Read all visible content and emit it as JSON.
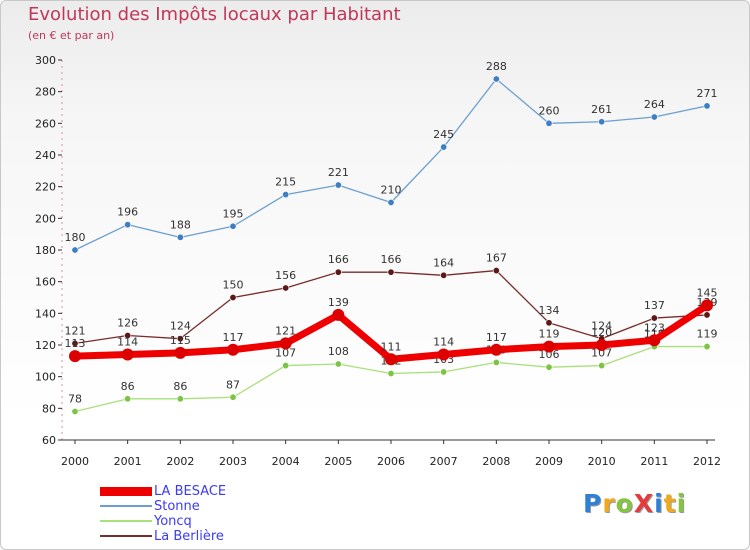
{
  "header": {
    "title": "Evolution des Impôts locaux par Habitant",
    "subtitle": "(en € et par an)"
  },
  "logo": {
    "text": "ProXiti",
    "letters": [
      {
        "ch": "P",
        "color": "#2e7fd6"
      },
      {
        "ch": "r",
        "color": "#f0a81c"
      },
      {
        "ch": "o",
        "color": "#86c541"
      },
      {
        "ch": "X",
        "color": "#e43c3c"
      },
      {
        "ch": "i",
        "color": "#2e7fd6"
      },
      {
        "ch": "t",
        "color": "#f0a81c"
      },
      {
        "ch": "i",
        "color": "#86c541"
      }
    ]
  },
  "chart_data": {
    "type": "line",
    "title": "Evolution des Impôts locaux par Habitant",
    "subtitle": "(en € et par an)",
    "xlabel": "",
    "ylabel": "",
    "x": [
      "2000",
      "2001",
      "2002",
      "2003",
      "2004",
      "2005",
      "2006",
      "2007",
      "2008",
      "2009",
      "2010",
      "2011",
      "2012"
    ],
    "ylim": [
      60,
      300
    ],
    "yticks": [
      60,
      80,
      100,
      120,
      140,
      160,
      180,
      200,
      220,
      240,
      260,
      280,
      300
    ],
    "legend_position": "bottom-left",
    "series": [
      {
        "name": "Stonne",
        "color": "#6a9fd0",
        "marker_color": "#3d7fc2",
        "values": [
          180,
          196,
          188,
          195,
          215,
          221,
          210,
          245,
          288,
          260,
          261,
          264,
          271
        ],
        "labels": [
          "180",
          "196",
          "188",
          "195",
          "215",
          "221",
          "210",
          "245",
          "288",
          "260",
          "261",
          "264",
          "271"
        ]
      },
      {
        "name": "La Berlière",
        "color": "#7a2c2c",
        "marker_color": "#5a1818",
        "values": [
          121,
          126,
          124,
          150,
          156,
          166,
          166,
          164,
          167,
          134,
          124,
          137,
          139
        ],
        "labels": [
          "121",
          "126",
          "124",
          "150",
          "156",
          "166",
          "166",
          "164",
          "167",
          "134",
          "124",
          "137",
          "139"
        ]
      },
      {
        "name": "Yoncq",
        "color": "#a8e07a",
        "marker_color": "#7cc443",
        "values": [
          78,
          86,
          86,
          87,
          107,
          108,
          102,
          103,
          109,
          106,
          107,
          119,
          119
        ],
        "labels": [
          "78",
          "86",
          "86",
          "87",
          "107",
          "108",
          "102",
          "103",
          "109",
          "106",
          "107",
          "119",
          "119"
        ]
      },
      {
        "name": "LA BESACE",
        "color": "#ee0000",
        "marker_color": "#dd0000",
        "values": [
          113,
          114,
          115,
          117,
          121,
          139,
          111,
          114,
          117,
          119,
          120,
          123,
          145
        ],
        "labels": [
          "113",
          "114",
          "115",
          "117",
          "121",
          "139",
          "111",
          "114",
          "117",
          "119",
          "120",
          "123",
          "145"
        ]
      }
    ],
    "legend": [
      "LA BESACE",
      "Stonne",
      "Yoncq",
      "La Berlière"
    ]
  }
}
